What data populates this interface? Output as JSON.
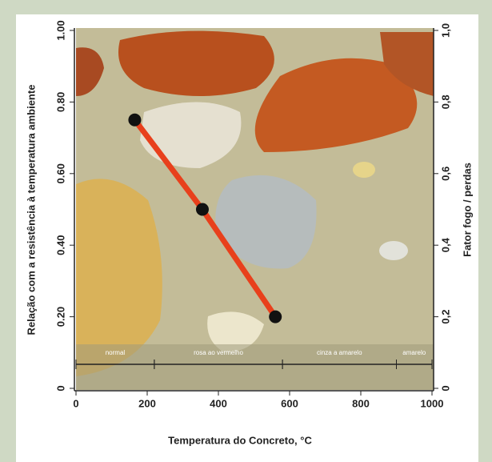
{
  "chart_data": {
    "type": "line",
    "x_label": "Temperatura do Concreto, °C",
    "y_label": "Relação com a resistência à temperatura ambiente",
    "y2_label": "Fator fogo / perdas",
    "x": [
      165,
      355,
      560
    ],
    "series": [
      {
        "color": "#e8401c",
        "values": [
          0.75,
          0.5,
          0.2
        ]
      }
    ],
    "xlim": [
      0,
      1000
    ],
    "xticks": [
      0,
      200,
      400,
      600,
      800,
      1000
    ],
    "ylim": [
      0,
      1
    ],
    "yticks": [
      0,
      {
        "value": 0.2,
        "label": "0.20"
      },
      {
        "value": 0.4,
        "label": "0.40"
      },
      {
        "value": 0.6,
        "label": "0.60"
      },
      {
        "value": 0.8,
        "label": "0.80"
      },
      {
        "value": 1,
        "label": "1.00"
      }
    ],
    "y2lim": [
      0,
      1
    ],
    "y2ticks": [
      0,
      {
        "value": 0.2,
        "label": "0,2"
      },
      {
        "value": 0.4,
        "label": "0,4"
      },
      {
        "value": 0.6,
        "label": "0,6"
      },
      {
        "value": 0.8,
        "label": "0,8"
      },
      {
        "value": 1,
        "label": "1,0"
      }
    ],
    "zones": [
      {
        "label": "normal",
        "from": 0,
        "to": 220
      },
      {
        "label": "rosa ao vermelho",
        "from": 220,
        "to": 580
      },
      {
        "label": "cinza a amarelo",
        "from": 580,
        "to": 900
      },
      {
        "label": "amarelo",
        "from": 900,
        "to": 1000
      }
    ]
  }
}
